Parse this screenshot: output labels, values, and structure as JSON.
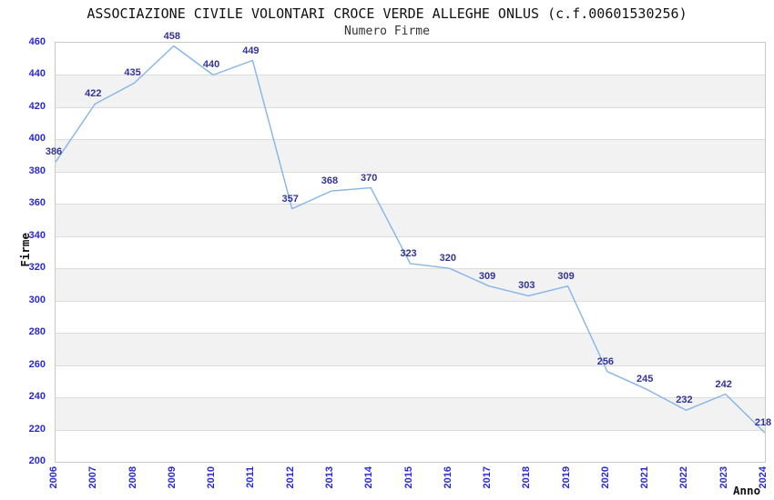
{
  "chart_data": {
    "type": "line",
    "title": "ASSOCIAZIONE CIVILE VOLONTARI CROCE VERDE ALLEGHE ONLUS (c.f.00601530256)",
    "subtitle": "Numero Firme",
    "xlabel": "Anno",
    "ylabel": "Firme",
    "x": [
      2006,
      2007,
      2008,
      2009,
      2010,
      2011,
      2012,
      2013,
      2014,
      2015,
      2016,
      2017,
      2018,
      2019,
      2020,
      2021,
      2022,
      2023,
      2024
    ],
    "series": [
      {
        "name": "Numero Firme",
        "values": [
          386,
          422,
          435,
          458,
          440,
          449,
          357,
          368,
          370,
          323,
          320,
          309,
          303,
          309,
          256,
          245,
          232,
          242,
          218
        ]
      }
    ],
    "ylim": [
      200,
      460
    ],
    "ytick_step": 20,
    "grid": "horizontal-only",
    "alternating_bands": true,
    "legend_position": "none",
    "data_labels_shown": true,
    "colors": {
      "line": "#85b5e7",
      "data_label": "#333399",
      "tick_label": "#2929d2",
      "title": "#111111",
      "subtitle": "#333333",
      "axis_title": "#111111",
      "band_gray": "#f2f2f2",
      "gridline": "#dcdcdc",
      "plot_border": "#c9c9c9",
      "background": "#ffffff"
    }
  }
}
